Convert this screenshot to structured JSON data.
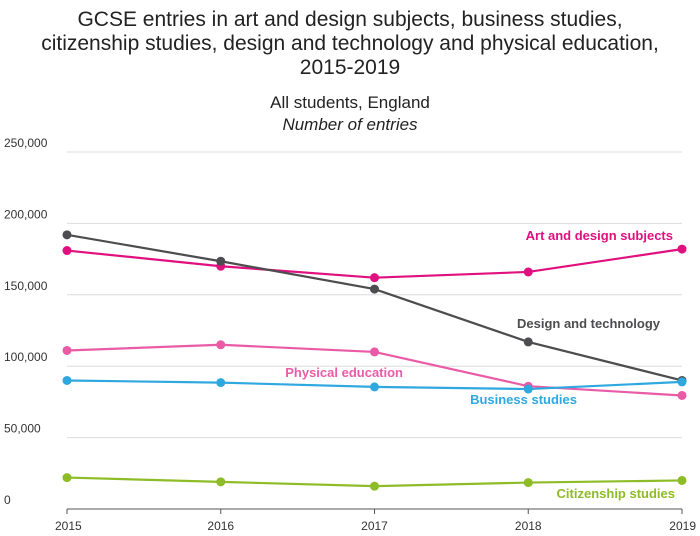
{
  "title_lines": [
    "GCSE entries in art and design subjects, business studies,",
    "citizenship studies, design and technology and physical education,",
    "2015-2019"
  ],
  "subtitle": "All students, England",
  "units": "Number of entries",
  "chart_data": {
    "type": "line",
    "title": "GCSE entries in art and design subjects, business studies, citizenship studies, design and technology and physical education, 2015-2019",
    "subtitle": "All students, England",
    "ylabel": "Number of entries",
    "xlabel": "",
    "x": [
      "2015",
      "2016",
      "2017",
      "2018",
      "2019"
    ],
    "ylim": [
      0,
      250000
    ],
    "yticks": [
      0,
      50000,
      100000,
      150000,
      200000,
      250000
    ],
    "ytick_labels": [
      "0",
      "50,000",
      "100,000",
      "150,000",
      "200,000",
      "250,000"
    ],
    "grid": true,
    "legend": "inline labels",
    "series": [
      {
        "name": "Art and design subjects",
        "color": "#e0107f",
        "values": [
          181000,
          170000,
          162000,
          166000,
          182000
        ]
      },
      {
        "name": "Design and technology",
        "color": "#4d4d4f",
        "values": [
          192000,
          173500,
          154000,
          117000,
          90000
        ]
      },
      {
        "name": "Physical education",
        "color": "#ea5ba6",
        "values": [
          111000,
          115000,
          110000,
          86000,
          79500
        ]
      },
      {
        "name": "Business studies",
        "color": "#2fa8df",
        "values": [
          90000,
          88500,
          85500,
          84000,
          89000
        ]
      },
      {
        "name": "Citizenship studies",
        "color": "#8ebc26",
        "values": [
          22000,
          19000,
          16000,
          18500,
          20000
        ]
      }
    ]
  }
}
